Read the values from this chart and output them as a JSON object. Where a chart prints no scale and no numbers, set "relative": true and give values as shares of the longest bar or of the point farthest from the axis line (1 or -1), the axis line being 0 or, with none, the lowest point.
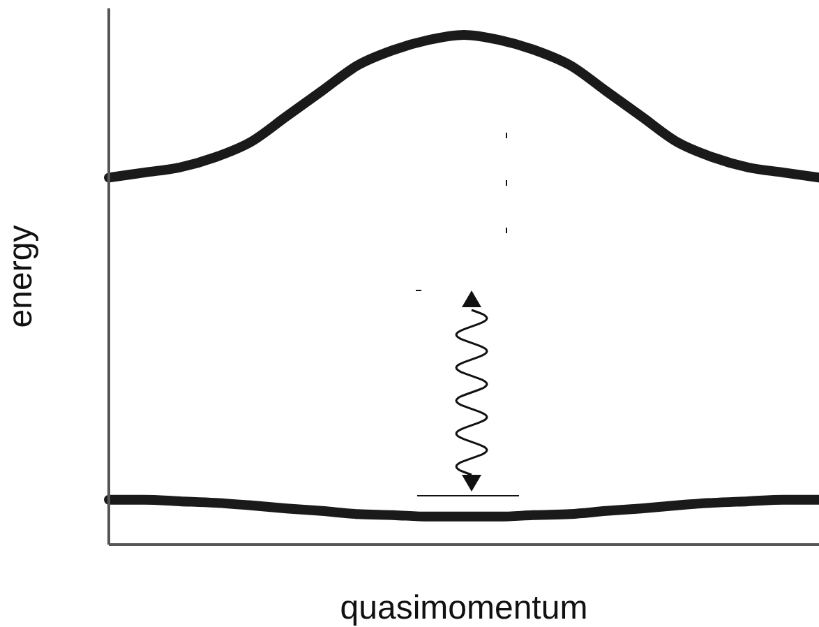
{
  "chart_data": {
    "type": "line",
    "xlabel": "quasimomentum",
    "ylabel": "energy",
    "relative": true,
    "marker": "none",
    "line_style": "solid",
    "categories": [
      null,
      null,
      null,
      null,
      null,
      null,
      null,
      null,
      null,
      null,
      null,
      null,
      null,
      null,
      null,
      null,
      null,
      null,
      null,
      null,
      null
    ],
    "series": [
      {
        "color": "#1a1a1a",
        "values": [
          0.72,
          0.73,
          0.74,
          0.76,
          0.79,
          0.84,
          0.89,
          0.94,
          0.97,
          0.99,
          1,
          0.99,
          0.97,
          0.94,
          0.89,
          0.84,
          0.79,
          0.76,
          0.74,
          0.73,
          0.72
        ]
      },
      {
        "color": "#1a1a1a",
        "values": [
          0.088,
          0.088,
          0.085,
          0.082,
          0.077,
          0.071,
          0.066,
          0.06,
          0.058,
          0.055,
          0.055,
          0.055,
          0.058,
          0.06,
          0.066,
          0.071,
          0.077,
          0.082,
          0.085,
          0.088,
          0.088
        ]
      }
    ]
  }
}
